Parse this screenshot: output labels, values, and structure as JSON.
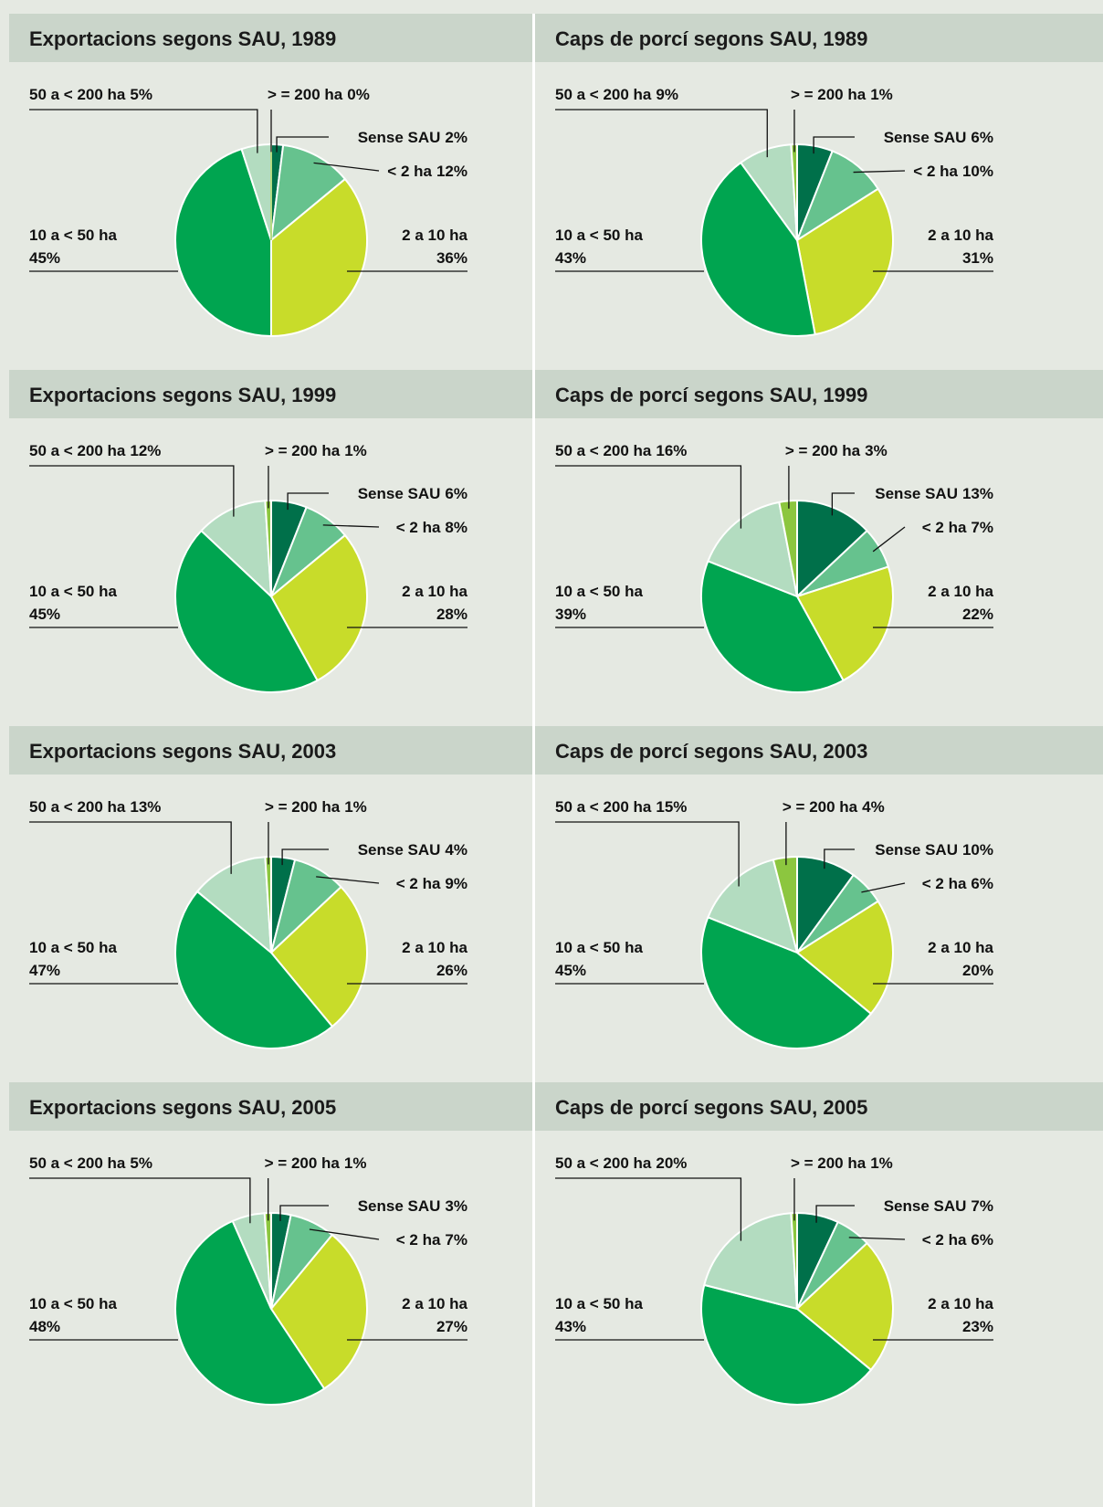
{
  "chart_data": [
    {
      "type": "pie",
      "title": "Exportacions segons SAU, 1989",
      "categories": [
        "Sense SAU",
        "< 2 ha",
        "2 a 10 ha",
        "10 a < 50 ha",
        "50 a < 200 ha",
        "> = 200 ha"
      ],
      "values": [
        2,
        12,
        36,
        45,
        5,
        0
      ],
      "value_labels": [
        "2%",
        "12%",
        "36%",
        "45%",
        "5%",
        "0%"
      ],
      "colors": [
        "#00704a",
        "#66c28e",
        "#c8dc2a",
        "#00a550",
        "#b3dcc0",
        "#8cc63f"
      ]
    },
    {
      "type": "pie",
      "title": "Caps de porcí segons SAU, 1989",
      "categories": [
        "Sense SAU",
        "< 2 ha",
        "2 a 10 ha",
        "10 a < 50 ha",
        "50 a < 200 ha",
        "> = 200 ha"
      ],
      "values": [
        6,
        10,
        31,
        43,
        9,
        1
      ],
      "value_labels": [
        "6%",
        "10%",
        "31%",
        "43%",
        "9%",
        "1%"
      ],
      "colors": [
        "#00704a",
        "#66c28e",
        "#c8dc2a",
        "#00a550",
        "#b3dcc0",
        "#8cc63f"
      ]
    },
    {
      "type": "pie",
      "title": "Exportacions segons SAU, 1999",
      "categories": [
        "Sense SAU",
        "< 2 ha",
        "2 a 10 ha",
        "10 a < 50 ha",
        "50 a < 200 ha",
        "> = 200 ha"
      ],
      "values": [
        6,
        8,
        28,
        45,
        12,
        1
      ],
      "value_labels": [
        "6%",
        "8%",
        "28%",
        "45%",
        "12%",
        "1%"
      ],
      "colors": [
        "#00704a",
        "#66c28e",
        "#c8dc2a",
        "#00a550",
        "#b3dcc0",
        "#8cc63f"
      ]
    },
    {
      "type": "pie",
      "title": "Caps de porcí segons SAU, 1999",
      "categories": [
        "Sense SAU",
        "< 2 ha",
        "2 a 10 ha",
        "10 a < 50 ha",
        "50 a < 200 ha",
        "> = 200 ha"
      ],
      "values": [
        13,
        7,
        22,
        39,
        16,
        3
      ],
      "value_labels": [
        "13%",
        "7%",
        "22%",
        "39%",
        "16%",
        "3%"
      ],
      "colors": [
        "#00704a",
        "#66c28e",
        "#c8dc2a",
        "#00a550",
        "#b3dcc0",
        "#8cc63f"
      ]
    },
    {
      "type": "pie",
      "title": "Exportacions segons SAU, 2003",
      "categories": [
        "Sense SAU",
        "< 2 ha",
        "2 a 10 ha",
        "10 a < 50 ha",
        "50 a < 200 ha",
        "> = 200 ha"
      ],
      "values": [
        4,
        9,
        26,
        47,
        13,
        1
      ],
      "value_labels": [
        "4%",
        "9%",
        "26%",
        "47%",
        "13%",
        "1%"
      ],
      "colors": [
        "#00704a",
        "#66c28e",
        "#c8dc2a",
        "#00a550",
        "#b3dcc0",
        "#8cc63f"
      ]
    },
    {
      "type": "pie",
      "title": "Caps de porcí segons SAU, 2003",
      "categories": [
        "Sense SAU",
        "< 2 ha",
        "2 a 10 ha",
        "10 a < 50 ha",
        "50 a < 200 ha",
        "> = 200 ha"
      ],
      "values": [
        10,
        6,
        20,
        45,
        15,
        4
      ],
      "value_labels": [
        "10%",
        "6%",
        "20%",
        "45%",
        "15%",
        "4%"
      ],
      "colors": [
        "#00704a",
        "#66c28e",
        "#c8dc2a",
        "#00a550",
        "#b3dcc0",
        "#8cc63f"
      ]
    },
    {
      "type": "pie",
      "title": "Exportacions segons SAU, 2005",
      "categories": [
        "Sense SAU",
        "< 2 ha",
        "2 a 10 ha",
        "10 a < 50 ha",
        "50 a < 200 ha",
        "> = 200 ha"
      ],
      "values": [
        3,
        7,
        27,
        48,
        5,
        1
      ],
      "value_labels": [
        "3%",
        "7%",
        "27%",
        "48%",
        "5%",
        "1%"
      ],
      "colors": [
        "#00704a",
        "#66c28e",
        "#c8dc2a",
        "#00a550",
        "#b3dcc0",
        "#8cc63f"
      ]
    },
    {
      "type": "pie",
      "title": "Caps de porcí segons SAU, 2005",
      "categories": [
        "Sense SAU",
        "< 2 ha",
        "2 a 10 ha",
        "10 a < 50 ha",
        "50 a < 200 ha",
        "> = 200 ha"
      ],
      "values": [
        7,
        6,
        23,
        43,
        20,
        1
      ],
      "value_labels": [
        "7%",
        "6%",
        "23%",
        "43%",
        "20%",
        "1%"
      ],
      "colors": [
        "#00704a",
        "#66c28e",
        "#c8dc2a",
        "#00a550",
        "#b3dcc0",
        "#8cc63f"
      ]
    }
  ]
}
